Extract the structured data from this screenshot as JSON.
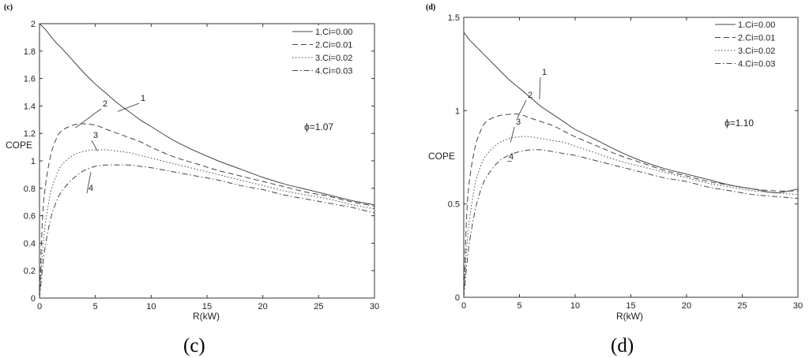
{
  "panels": [
    {
      "letter": "(c)",
      "caption": "(c)",
      "annotation": "ϕ=1.07",
      "chart_data": {
        "type": "line",
        "title": "",
        "xlabel": "R(kW)",
        "ylabel": "COPE",
        "xlim": [
          0,
          30
        ],
        "ylim": [
          0,
          2
        ],
        "xticks": [
          0,
          5,
          10,
          15,
          20,
          25,
          30
        ],
        "yticks": [
          0,
          0.2,
          0.4,
          0.6,
          0.8,
          1,
          1.2,
          1.4,
          1.6,
          1.8,
          2
        ],
        "ytick_labels": [
          "0",
          "0.2",
          "0.4",
          "0.6",
          "0.8",
          "1",
          "1.2",
          "1.4",
          "1.6",
          "1.8",
          "2"
        ],
        "grid": false,
        "legend_position": "top-right",
        "x": [
          0,
          0.25,
          0.5,
          1,
          1.5,
          2,
          3,
          4,
          5,
          6,
          7,
          8,
          9,
          10,
          12,
          14,
          16,
          18,
          20,
          22,
          24,
          26,
          28,
          30
        ],
        "series": [
          {
            "name": "1.Ci=0.00",
            "label": "1",
            "style": "solid",
            "values": [
              2.0,
              1.98,
              1.96,
              1.91,
              1.86,
              1.82,
              1.73,
              1.64,
              1.56,
              1.49,
              1.42,
              1.36,
              1.3,
              1.25,
              1.15,
              1.07,
              1.0,
              0.94,
              0.88,
              0.83,
              0.79,
              0.75,
              0.71,
              0.68
            ]
          },
          {
            "name": "2.Ci=0.01",
            "label": "2",
            "style": "dashed",
            "values": [
              0.0,
              0.55,
              0.8,
              1.04,
              1.16,
              1.22,
              1.26,
              1.27,
              1.26,
              1.23,
              1.2,
              1.17,
              1.14,
              1.1,
              1.03,
              0.98,
              0.93,
              0.89,
              0.85,
              0.81,
              0.77,
              0.74,
              0.7,
              0.67
            ]
          },
          {
            "name": "3.Ci=0.02",
            "label": "3",
            "style": "dotted",
            "values": [
              0.0,
              0.32,
              0.53,
              0.77,
              0.89,
              0.97,
              1.04,
              1.07,
              1.08,
              1.08,
              1.07,
              1.06,
              1.04,
              1.02,
              0.98,
              0.94,
              0.9,
              0.86,
              0.82,
              0.78,
              0.75,
              0.72,
              0.68,
              0.65
            ]
          },
          {
            "name": "4.Ci=0.03",
            "label": "4",
            "style": "dashdot",
            "values": [
              0.0,
              0.2,
              0.37,
              0.58,
              0.7,
              0.78,
              0.87,
              0.93,
              0.96,
              0.97,
              0.97,
              0.97,
              0.96,
              0.95,
              0.92,
              0.89,
              0.86,
              0.82,
              0.79,
              0.75,
              0.72,
              0.69,
              0.66,
              0.62
            ]
          }
        ]
      }
    },
    {
      "letter": "(d)",
      "caption": "(d)",
      "annotation": "ϕ=1.10",
      "chart_data": {
        "type": "line",
        "title": "",
        "xlabel": "R(kW)",
        "ylabel": "COPE",
        "xlim": [
          0,
          30
        ],
        "ylim": [
          0,
          1.5
        ],
        "xticks": [
          0,
          5,
          10,
          15,
          20,
          25,
          30
        ],
        "yticks": [
          0,
          0.5,
          1,
          1.5
        ],
        "ytick_labels": [
          "0",
          "0.5",
          "1",
          "1.5"
        ],
        "grid": false,
        "legend_position": "top-right",
        "x": [
          0,
          0.25,
          0.5,
          1,
          1.5,
          2,
          3,
          4,
          5,
          6,
          7,
          8,
          9,
          10,
          12,
          14,
          16,
          18,
          20,
          22,
          24,
          26,
          28,
          30
        ],
        "series": [
          {
            "name": "1.Ci=0.00",
            "label": "1",
            "style": "solid",
            "values": [
              1.42,
              1.4,
              1.38,
              1.35,
              1.32,
              1.29,
              1.23,
              1.17,
              1.12,
              1.07,
              1.02,
              0.98,
              0.94,
              0.9,
              0.84,
              0.78,
              0.73,
              0.69,
              0.66,
              0.63,
              0.6,
              0.58,
              0.56,
              0.58
            ]
          },
          {
            "name": "2.Ci=0.01",
            "label": "2",
            "style": "dashed",
            "values": [
              0.0,
              0.42,
              0.62,
              0.8,
              0.89,
              0.94,
              0.97,
              0.98,
              0.98,
              0.96,
              0.94,
              0.92,
              0.89,
              0.86,
              0.81,
              0.76,
              0.72,
              0.68,
              0.65,
              0.62,
              0.6,
              0.58,
              0.57,
              0.57
            ]
          },
          {
            "name": "3.Ci=0.02",
            "label": "3",
            "style": "dotted",
            "values": [
              0.0,
              0.25,
              0.41,
              0.6,
              0.7,
              0.76,
              0.82,
              0.85,
              0.86,
              0.86,
              0.85,
              0.84,
              0.83,
              0.81,
              0.77,
              0.73,
              0.7,
              0.67,
              0.64,
              0.61,
              0.59,
              0.57,
              0.56,
              0.55
            ]
          },
          {
            "name": "4.Ci=0.03",
            "label": "4",
            "style": "dashdot",
            "values": [
              0.0,
              0.16,
              0.29,
              0.46,
              0.57,
              0.64,
              0.72,
              0.76,
              0.78,
              0.79,
              0.79,
              0.78,
              0.77,
              0.76,
              0.73,
              0.7,
              0.67,
              0.64,
              0.62,
              0.59,
              0.57,
              0.55,
              0.54,
              0.53
            ]
          }
        ]
      }
    }
  ]
}
